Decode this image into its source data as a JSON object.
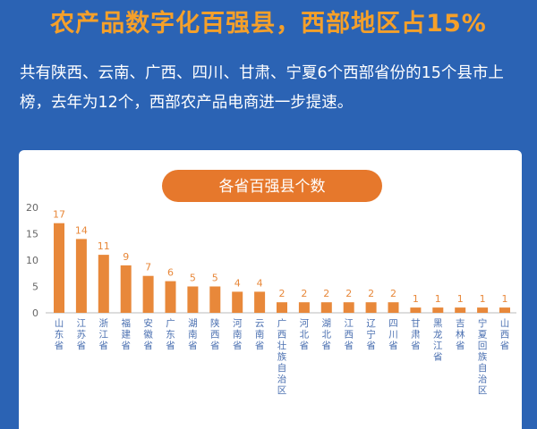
{
  "header": {
    "title": "农产品数字化百强县，西部地区占15%",
    "description": "共有陕西、云南、广西、四川、甘肃、宁夏6个西部省份的15个县市上榜，去年为12个，西部农产品电商进一步提速。"
  },
  "colors": {
    "background": "#2b63b4",
    "title": "#f5a02a",
    "bar": "#e8883a",
    "pill": "#e6782c",
    "axis_text": "#666666",
    "label_text": "#e8883a",
    "category_text": "#4a6fb0"
  },
  "chart_data": {
    "type": "bar",
    "title": "各省百强县个数",
    "xlabel": "",
    "ylabel": "",
    "ylim": [
      0,
      20
    ],
    "yticks": [
      0,
      5,
      10,
      15,
      20
    ],
    "grid": false,
    "categories": [
      "山东省",
      "江苏省",
      "浙江省",
      "福建省",
      "安徽省",
      "广东省",
      "湖南省",
      "陕西省",
      "河南省",
      "云南省",
      "广西壮族自治区",
      "河北省",
      "湖北省",
      "江西省",
      "辽宁省",
      "四川省",
      "甘肃省",
      "黑龙江省",
      "吉林省",
      "宁夏回族自治区",
      "山西省"
    ],
    "values": [
      17,
      14,
      11,
      9,
      7,
      6,
      5,
      5,
      4,
      4,
      2,
      2,
      2,
      2,
      2,
      2,
      1,
      1,
      1,
      1,
      1
    ]
  }
}
